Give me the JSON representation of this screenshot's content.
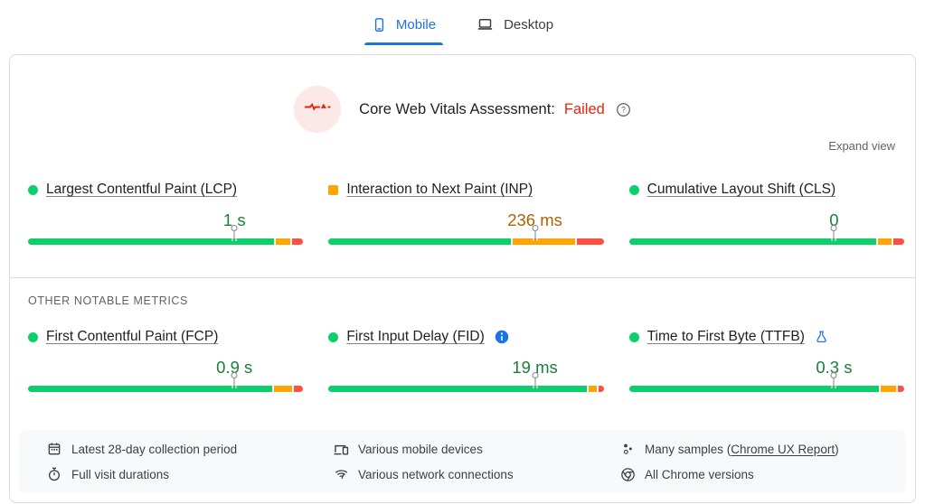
{
  "tabs": [
    {
      "id": "mobile",
      "label": "Mobile",
      "icon": "phone-icon",
      "active": true
    },
    {
      "id": "desktop",
      "label": "Desktop",
      "icon": "laptop-icon",
      "active": false
    }
  ],
  "header": {
    "title": "Core Web Vitals Assessment:",
    "status": "Failed",
    "badge_icon": "pulse-icon",
    "help_icon": "help-icon"
  },
  "actions": {
    "expand_view": "Expand view"
  },
  "sections": {
    "other_metrics_label": "OTHER NOTABLE METRICS"
  },
  "metrics": {
    "core": [
      {
        "name": "Largest Contentful Paint (LCP)",
        "value": "1 s",
        "rating": "good",
        "indicator": "circle",
        "badge": null,
        "bar": {
          "good_pct": 90.5,
          "ni_pct": 5.5,
          "poor_pct": 4,
          "marker_pct": 75
        }
      },
      {
        "name": "Interaction to Next Paint (INP)",
        "value": "236 ms",
        "rating": "ni",
        "indicator": "square",
        "badge": null,
        "bar": {
          "good_pct": 67,
          "ni_pct": 23,
          "poor_pct": 10,
          "marker_pct": 75
        }
      },
      {
        "name": "Cumulative Layout Shift (CLS)",
        "value": "0",
        "rating": "good",
        "indicator": "circle",
        "badge": null,
        "bar": {
          "good_pct": 91,
          "ni_pct": 5,
          "poor_pct": 4,
          "marker_pct": 74.5
        }
      }
    ],
    "other": [
      {
        "name": "First Contentful Paint (FCP)",
        "value": "0.9 s",
        "rating": "good",
        "indicator": "circle",
        "badge": null,
        "bar": {
          "good_pct": 90,
          "ni_pct": 6.5,
          "poor_pct": 3.5,
          "marker_pct": 75
        }
      },
      {
        "name": "First Input Delay (FID)",
        "value": "19 ms",
        "rating": "good",
        "indicator": "circle",
        "badge": "info-icon",
        "bar": {
          "good_pct": 95,
          "ni_pct": 3,
          "poor_pct": 2,
          "marker_pct": 75
        }
      },
      {
        "name": "Time to First Byte (TTFB)",
        "value": "0.3 s",
        "rating": "good",
        "indicator": "circle",
        "badge": "flask-icon",
        "bar": {
          "good_pct": 92,
          "ni_pct": 5.5,
          "poor_pct": 2.5,
          "marker_pct": 74.5
        }
      }
    ]
  },
  "footer": {
    "columns": [
      [
        {
          "icon": "calendar-icon",
          "prefix": "Latest 28-day collection period",
          "link": "",
          "suffix": ""
        },
        {
          "icon": "stopwatch-icon",
          "prefix": "Full visit durations",
          "link": "",
          "suffix": ""
        }
      ],
      [
        {
          "icon": "devices-icon",
          "prefix": "Various mobile devices",
          "link": "",
          "suffix": ""
        },
        {
          "icon": "network-icon",
          "prefix": "Various network connections",
          "link": "",
          "suffix": ""
        }
      ],
      [
        {
          "icon": "samples-icon",
          "prefix": "Many samples (",
          "link": "Chrome UX Report",
          "suffix": ")"
        },
        {
          "icon": "chrome-icon",
          "prefix": "All Chrome versions",
          "link": "",
          "suffix": ""
        }
      ]
    ]
  },
  "colors": {
    "accent_blue": "#1a73e8",
    "good_green": "#0cce6b",
    "average_orange": "#ffa400",
    "poor_red": "#ff4e42",
    "good_text_green": "#188038",
    "average_text_orange": "#b06000",
    "fail_red": "#e8240c",
    "badge_background": "#fce8e6",
    "card_border": "#dadce0",
    "footer_background": "#f8f9fa"
  }
}
